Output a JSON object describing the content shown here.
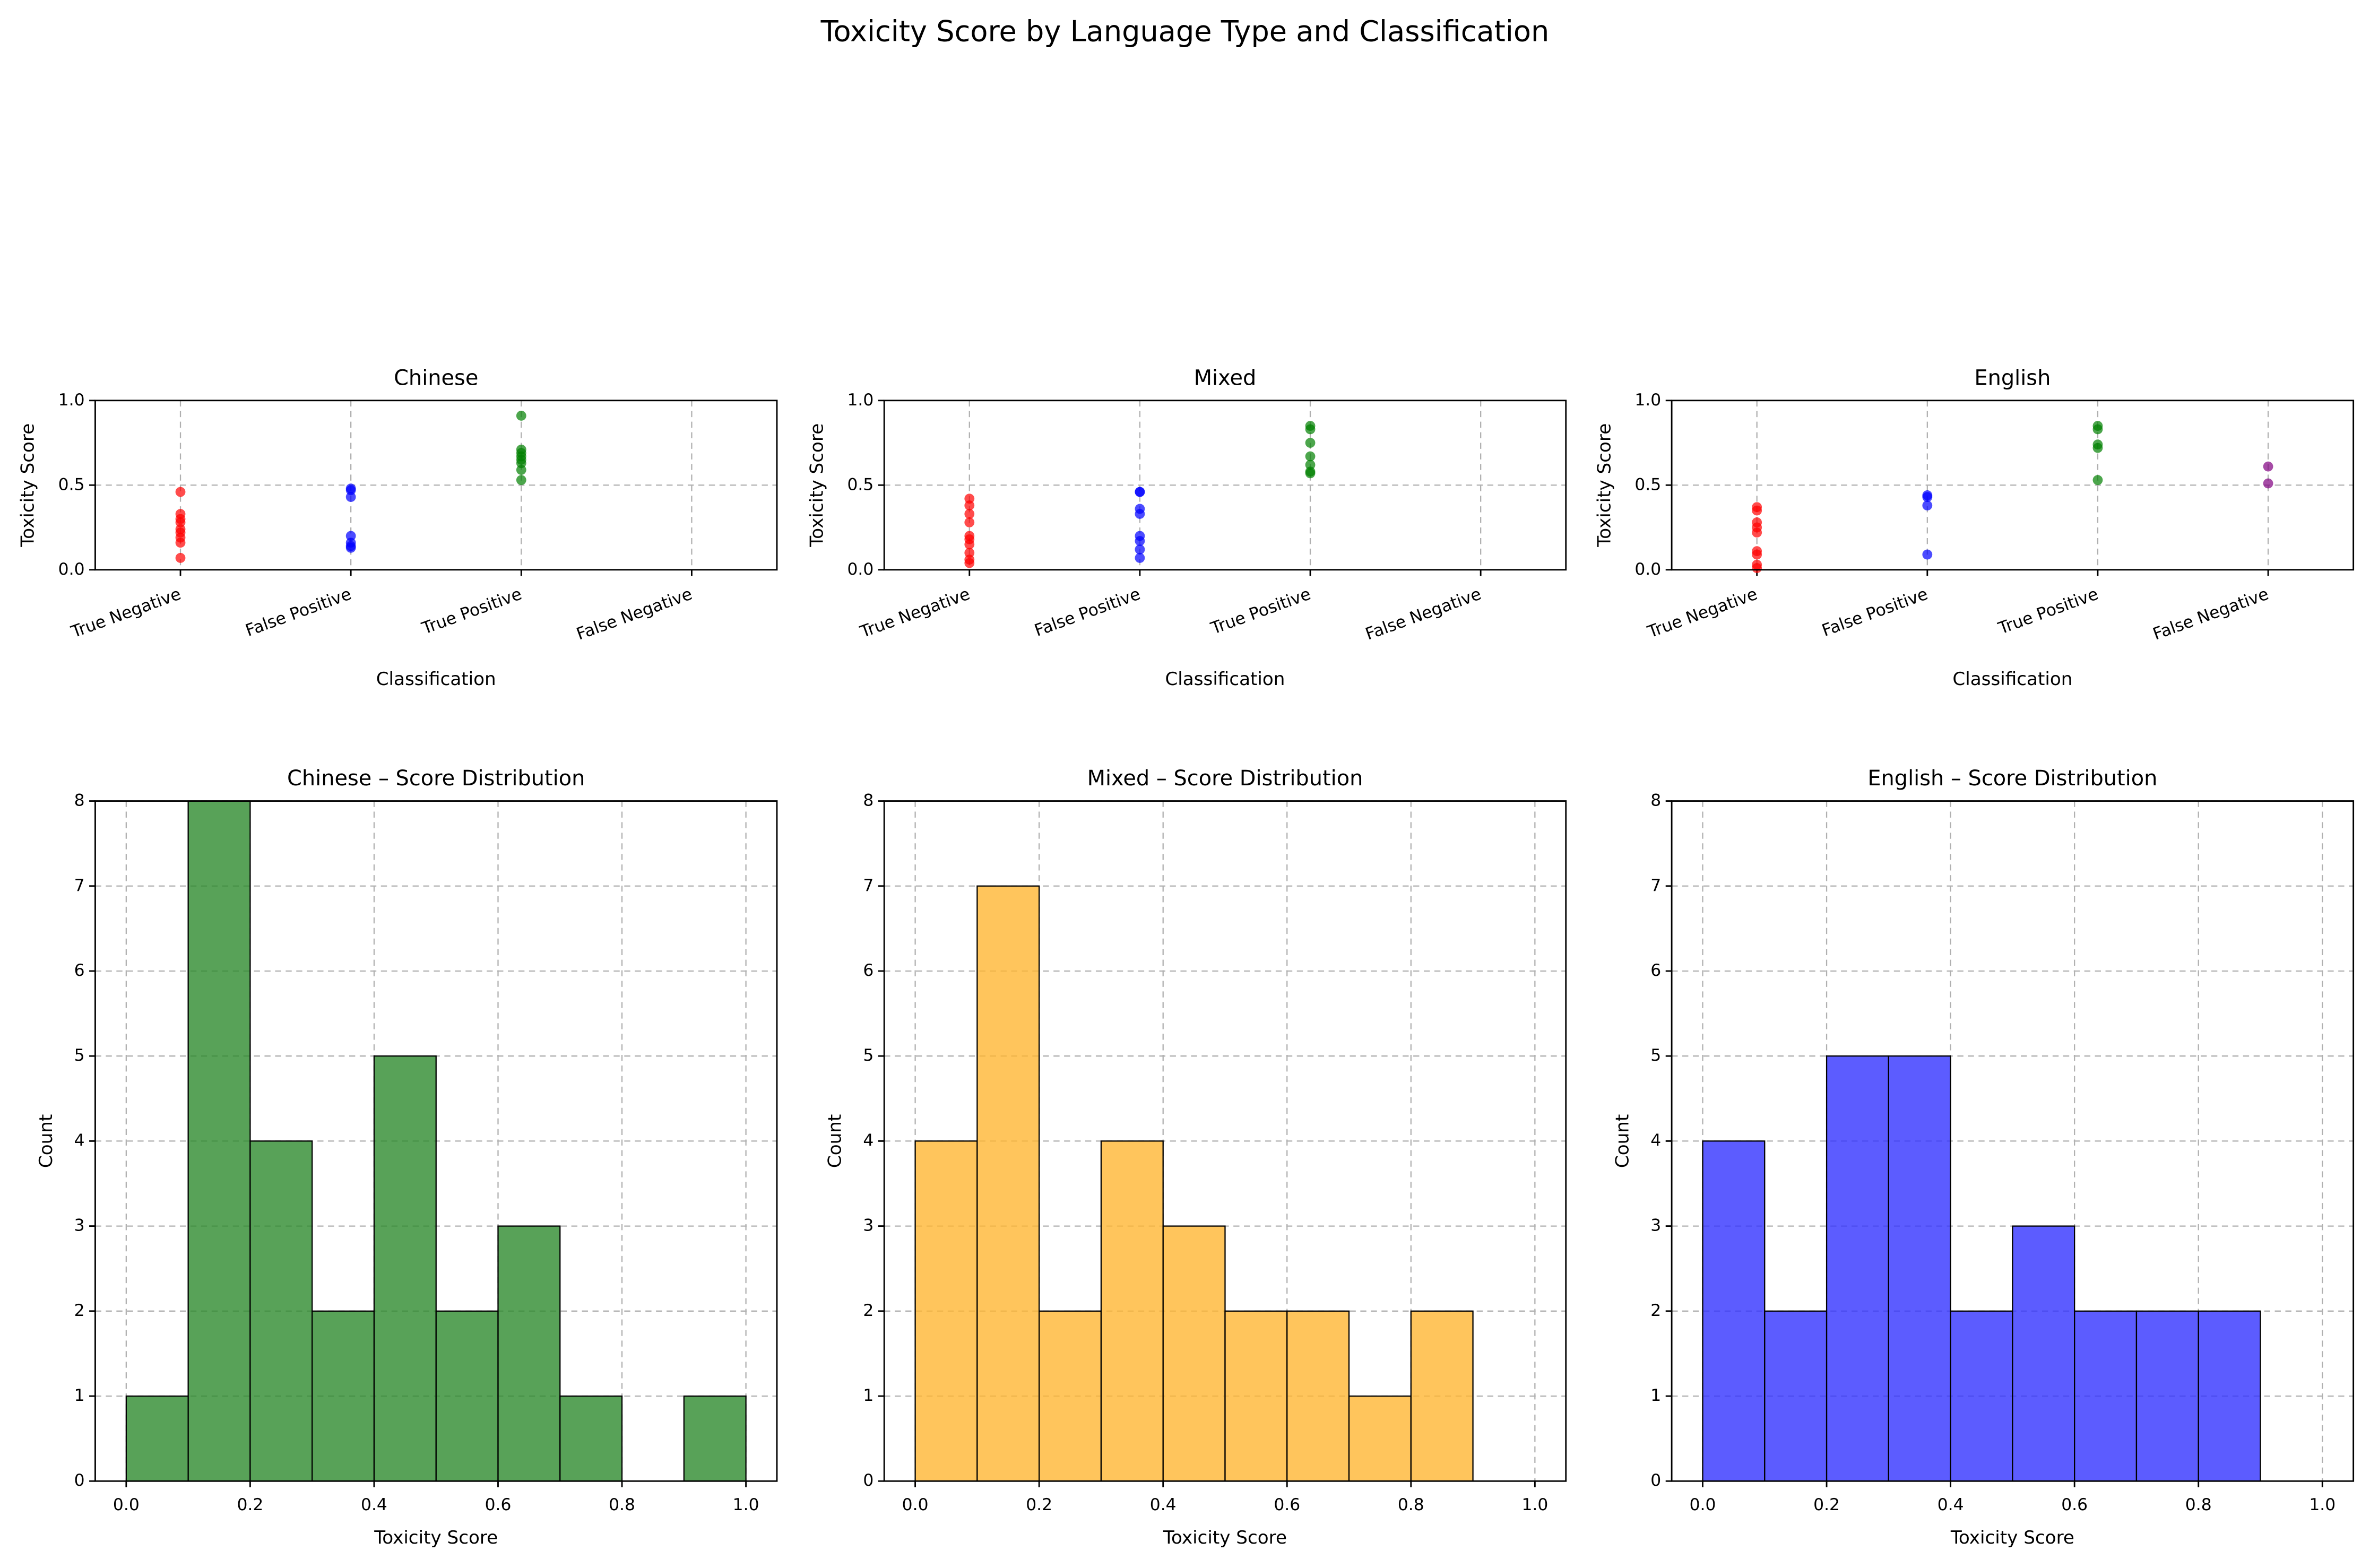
{
  "title": "Toxicity Score by Language Type and Classification",
  "chart_data": [
    {
      "type": "strip",
      "title": "Chinese",
      "xlabel": "Classification",
      "ylabel": "Toxicity Score",
      "categories": [
        "True Negative",
        "False Positive",
        "True Positive",
        "False Negative"
      ],
      "values": [
        [
          0.46,
          0.33,
          0.3,
          0.28,
          0.24,
          0.22,
          0.19,
          0.16,
          0.07
        ],
        [
          0.48,
          0.47,
          0.43,
          0.2,
          0.16,
          0.14,
          0.13
        ],
        [
          0.91,
          0.71,
          0.69,
          0.67,
          0.65,
          0.63,
          0.59,
          0.53
        ],
        []
      ],
      "colors": [
        "red",
        "blue",
        "green"
      ],
      "ylim": [
        0,
        1
      ],
      "yticks": [
        {
          "value": 0,
          "label": "0.0"
        },
        0.5,
        {
          "value": 1,
          "label": "1.0"
        }
      ],
      "grid": true
    },
    {
      "type": "strip",
      "title": "Mixed",
      "xlabel": "Classification",
      "ylabel": "Toxicity Score",
      "categories": [
        "True Negative",
        "False Positive",
        "True Positive",
        "False Negative"
      ],
      "values": [
        [
          0.42,
          0.38,
          0.33,
          0.28,
          0.2,
          0.18,
          0.15,
          0.1,
          0.06,
          0.04
        ],
        [
          0.46,
          0.46,
          0.36,
          0.33,
          0.2,
          0.17,
          0.12,
          0.07
        ],
        [
          0.85,
          0.83,
          0.75,
          0.67,
          0.62,
          0.58,
          0.57
        ],
        []
      ],
      "colors": [
        "red",
        "blue",
        "green"
      ],
      "ylim": [
        0,
        1
      ],
      "yticks": [
        {
          "value": 0,
          "label": "0.0"
        },
        0.5,
        {
          "value": 1,
          "label": "1.0"
        }
      ],
      "grid": true
    },
    {
      "type": "strip",
      "title": "English",
      "xlabel": "Classification",
      "ylabel": "Toxicity Score",
      "categories": [
        "True Negative",
        "False Positive",
        "True Positive",
        "False Negative"
      ],
      "values": [
        [
          0.37,
          0.35,
          0.28,
          0.25,
          0.22,
          0.11,
          0.09,
          0.03,
          0.01
        ],
        [
          0.44,
          0.43,
          0.38,
          0.09
        ],
        [
          0.85,
          0.83,
          0.74,
          0.72,
          0.53
        ],
        [
          0.61,
          0.51
        ]
      ],
      "colors": [
        "red",
        "blue",
        "green",
        "purple"
      ],
      "ylim": [
        0,
        1
      ],
      "yticks": [
        {
          "value": 0,
          "label": "0.0"
        },
        0.5,
        {
          "value": 1,
          "label": "1.0"
        }
      ],
      "grid": true
    },
    {
      "type": "histogram",
      "title": "Chinese – Score Distribution",
      "xlabel": "Toxicity Score",
      "ylabel": "Count",
      "bins": [
        0,
        0.1,
        0.2,
        0.3,
        0.4,
        0.5,
        0.6,
        0.7,
        0.8,
        0.9,
        1
      ],
      "values": [
        1,
        8,
        4,
        2,
        5,
        2,
        3,
        1,
        0,
        1
      ],
      "color": "#2e8b2e",
      "xlim": [
        -0.05,
        1.05
      ],
      "xticks": [
        {
          "value": 0,
          "label": "0.0"
        },
        0.2,
        0.4,
        0.6,
        0.8,
        {
          "value": 1,
          "label": "1.0"
        }
      ],
      "ylim": [
        0,
        8
      ],
      "yticks": [
        0,
        1,
        2,
        3,
        4,
        5,
        6,
        7,
        8
      ],
      "grid": true
    },
    {
      "type": "histogram",
      "title": "Mixed – Score Distribution",
      "xlabel": "Toxicity Score",
      "ylabel": "Count",
      "bins": [
        0,
        0.1,
        0.2,
        0.3,
        0.4,
        0.5,
        0.6,
        0.7,
        0.8,
        0.9,
        1
      ],
      "values": [
        4,
        7,
        2,
        4,
        3,
        2,
        2,
        1,
        2,
        0
      ],
      "color": "#ffb733",
      "xlim": [
        -0.05,
        1.05
      ],
      "xticks": [
        {
          "value": 0,
          "label": "0.0"
        },
        0.2,
        0.4,
        0.6,
        0.8,
        {
          "value": 1,
          "label": "1.0"
        }
      ],
      "ylim": [
        0,
        8
      ],
      "yticks": [
        0,
        1,
        2,
        3,
        4,
        5,
        6,
        7,
        8
      ],
      "grid": true
    },
    {
      "type": "histogram",
      "title": "English – Score Distribution",
      "xlabel": "Toxicity Score",
      "ylabel": "Count",
      "bins": [
        0,
        0.1,
        0.2,
        0.3,
        0.4,
        0.5,
        0.6,
        0.7,
        0.8,
        0.9,
        1
      ],
      "values": [
        4,
        2,
        5,
        5,
        2,
        3,
        2,
        2,
        2,
        0
      ],
      "color": "#3333ff",
      "xlim": [
        -0.05,
        1.05
      ],
      "xticks": [
        {
          "value": 0,
          "label": "0.0"
        },
        0.2,
        0.4,
        0.6,
        0.8,
        {
          "value": 1,
          "label": "1.0"
        }
      ],
      "ylim": [
        0,
        8
      ],
      "yticks": [
        0,
        1,
        2,
        3,
        4,
        5,
        6,
        7,
        8
      ],
      "grid": true
    }
  ]
}
